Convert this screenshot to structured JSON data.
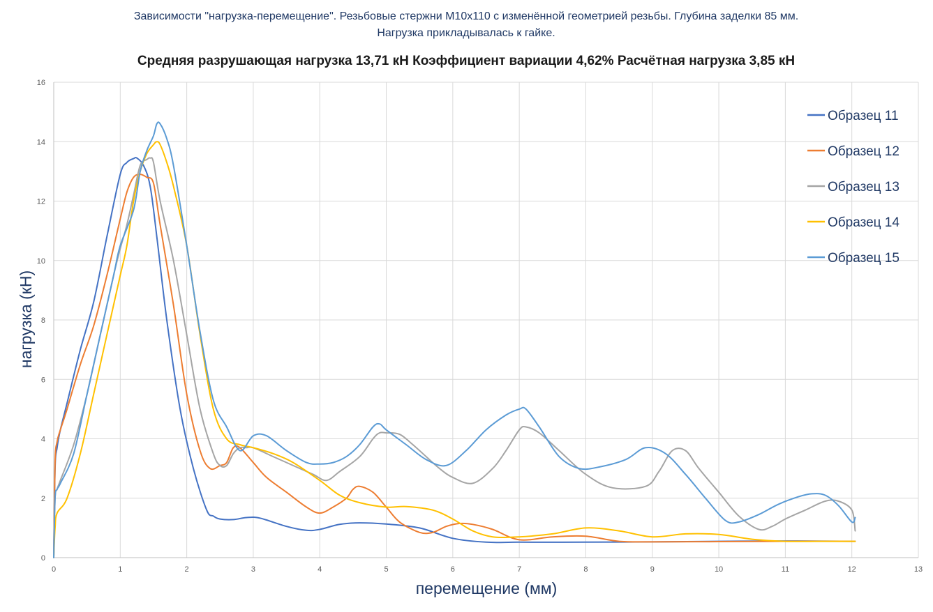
{
  "chart_data": {
    "type": "line",
    "title_line1": "Зависимости \"нагрузка-перемещение\". Резьбовые стержни М10х110 с изменённой геометрией резьбы. Глубина заделки 85 мм.",
    "title_line2": "Нагрузка прикладывалась к гайке.",
    "subtitle": "Средняя разрушающая нагрузка 13,71 кН  Коэффициент вариации 4,62%  Расчётная нагрузка 3,85 кН",
    "xlabel": "перемещение (мм)",
    "ylabel": "нагрузка (кН)",
    "xlim": [
      0,
      13
    ],
    "ylim": [
      0,
      16
    ],
    "xticks": [
      0,
      1,
      2,
      3,
      4,
      5,
      6,
      7,
      8,
      9,
      10,
      11,
      12,
      13
    ],
    "yticks": [
      0,
      2,
      4,
      6,
      8,
      10,
      12,
      14,
      16
    ],
    "grid": true,
    "legend_position": "right",
    "series": [
      {
        "name": "Образец 11",
        "color": "#4472c4",
        "x": [
          0,
          0.02,
          0.05,
          0.1,
          0.2,
          0.4,
          0.6,
          0.8,
          1.0,
          1.1,
          1.2,
          1.25,
          1.35,
          1.45,
          1.55,
          1.7,
          1.9,
          2.1,
          2.3,
          2.4,
          2.5,
          2.7,
          2.9,
          3.1,
          3.5,
          3.8,
          4.0,
          4.3,
          4.6,
          5.0,
          5.5,
          6.0,
          6.5,
          7.0,
          8.0,
          9.0,
          10.0,
          11.0,
          12.05
        ],
        "y": [
          0,
          3.0,
          3.7,
          4.3,
          5.2,
          7.0,
          8.6,
          10.8,
          12.9,
          13.3,
          13.43,
          13.45,
          13.2,
          12.5,
          10.8,
          8.0,
          5.0,
          3.0,
          1.6,
          1.4,
          1.3,
          1.28,
          1.35,
          1.33,
          1.05,
          0.92,
          0.95,
          1.12,
          1.17,
          1.13,
          1.0,
          0.65,
          0.52,
          0.52,
          0.52,
          0.53,
          0.55,
          0.56,
          0.55
        ]
      },
      {
        "name": "Образец 12",
        "color": "#ed7d31",
        "x": [
          0,
          0.02,
          0.05,
          0.1,
          0.2,
          0.4,
          0.6,
          0.8,
          1.0,
          1.1,
          1.2,
          1.3,
          1.4,
          1.5,
          1.6,
          1.8,
          2.0,
          2.2,
          2.35,
          2.5,
          2.6,
          2.7,
          2.8,
          3.0,
          3.2,
          3.5,
          3.8,
          4.0,
          4.2,
          4.4,
          4.5,
          4.6,
          4.8,
          5.0,
          5.2,
          5.5,
          5.7,
          5.9,
          6.1,
          6.3,
          6.6,
          7.0,
          7.5,
          8.0,
          8.5,
          9.0,
          10.0,
          11.0,
          12.05
        ],
        "y": [
          0,
          3.2,
          3.9,
          4.3,
          5.0,
          6.5,
          7.8,
          9.5,
          11.4,
          12.3,
          12.8,
          12.9,
          12.8,
          12.6,
          11.2,
          8.5,
          5.5,
          3.6,
          3.0,
          3.1,
          3.2,
          3.7,
          3.7,
          3.2,
          2.7,
          2.2,
          1.7,
          1.5,
          1.7,
          2.0,
          2.3,
          2.4,
          2.2,
          1.7,
          1.2,
          0.85,
          0.85,
          1.05,
          1.15,
          1.12,
          0.95,
          0.6,
          0.7,
          0.72,
          0.55,
          0.53,
          0.54,
          0.55,
          0.55
        ]
      },
      {
        "name": "Образец 13",
        "color": "#a5a5a5",
        "x": [
          0,
          0.02,
          0.05,
          0.1,
          0.3,
          0.5,
          0.7,
          0.9,
          1.0,
          1.1,
          1.2,
          1.3,
          1.4,
          1.45,
          1.5,
          1.6,
          1.8,
          2.0,
          2.2,
          2.4,
          2.5,
          2.6,
          2.7,
          2.8,
          2.9,
          3.0,
          3.3,
          3.6,
          3.9,
          4.1,
          4.3,
          4.6,
          4.8,
          4.9,
          5.0,
          5.2,
          5.4,
          5.6,
          5.8,
          6.0,
          6.3,
          6.6,
          6.8,
          7.0,
          7.1,
          7.3,
          7.6,
          8.0,
          8.4,
          8.9,
          9.1,
          9.3,
          9.5,
          9.7,
          10.0,
          10.3,
          10.6,
          10.8,
          11.0,
          11.3,
          11.6,
          11.8,
          12.0,
          12.05
        ],
        "y": [
          0,
          2.0,
          2.3,
          2.6,
          3.8,
          5.5,
          7.5,
          9.5,
          10.4,
          11.2,
          12.2,
          13.2,
          13.4,
          13.45,
          13.3,
          12.0,
          10.0,
          7.5,
          5.0,
          3.5,
          3.1,
          3.1,
          3.5,
          3.7,
          3.7,
          3.7,
          3.4,
          3.1,
          2.8,
          2.6,
          2.9,
          3.4,
          4.0,
          4.2,
          4.2,
          4.15,
          3.8,
          3.4,
          3.0,
          2.7,
          2.5,
          3.0,
          3.6,
          4.3,
          4.4,
          4.2,
          3.6,
          2.8,
          2.35,
          2.4,
          2.9,
          3.6,
          3.6,
          3.0,
          2.2,
          1.4,
          0.95,
          1.05,
          1.3,
          1.6,
          1.9,
          1.9,
          1.6,
          0.9
        ]
      },
      {
        "name": "Образец 14",
        "color": "#ffc000",
        "x": [
          0,
          0.02,
          0.05,
          0.2,
          0.4,
          0.6,
          0.8,
          1.0,
          1.1,
          1.2,
          1.3,
          1.4,
          1.5,
          1.55,
          1.6,
          1.7,
          1.8,
          2.0,
          2.2,
          2.4,
          2.6,
          2.8,
          3.0,
          3.3,
          3.6,
          4.0,
          4.3,
          4.6,
          5.0,
          5.3,
          5.7,
          6.0,
          6.3,
          6.6,
          7.0,
          7.5,
          8.0,
          8.5,
          9.0,
          9.5,
          10.0,
          10.5,
          11.0,
          11.5,
          12.05
        ],
        "y": [
          0,
          1.0,
          1.5,
          2.0,
          3.5,
          5.5,
          7.5,
          9.5,
          10.5,
          12.0,
          13.0,
          13.6,
          13.9,
          14.0,
          13.9,
          13.3,
          12.5,
          10.5,
          7.5,
          5.0,
          4.0,
          3.8,
          3.7,
          3.5,
          3.2,
          2.6,
          2.1,
          1.85,
          1.7,
          1.72,
          1.6,
          1.3,
          0.9,
          0.7,
          0.7,
          0.8,
          1.0,
          0.9,
          0.7,
          0.8,
          0.78,
          0.62,
          0.55,
          0.55,
          0.55
        ]
      },
      {
        "name": "Образец 15",
        "color": "#5b9bd5",
        "x": [
          0,
          0.02,
          0.05,
          0.1,
          0.3,
          0.5,
          0.7,
          0.9,
          1.0,
          1.2,
          1.3,
          1.4,
          1.5,
          1.55,
          1.6,
          1.7,
          1.8,
          2.0,
          2.2,
          2.4,
          2.6,
          2.8,
          3.0,
          3.2,
          3.5,
          3.8,
          4.0,
          4.2,
          4.4,
          4.6,
          4.8,
          4.9,
          5.0,
          5.3,
          5.6,
          5.9,
          6.2,
          6.5,
          6.8,
          7.0,
          7.1,
          7.3,
          7.6,
          7.9,
          8.2,
          8.6,
          8.9,
          9.2,
          9.5,
          9.8,
          10.1,
          10.3,
          10.6,
          10.9,
          11.2,
          11.4,
          11.6,
          11.8,
          12.0,
          12.05
        ],
        "y": [
          0,
          2.0,
          2.3,
          2.5,
          3.5,
          5.5,
          7.5,
          9.5,
          10.5,
          11.7,
          13.0,
          13.7,
          14.2,
          14.6,
          14.6,
          14.1,
          13.2,
          10.5,
          7.6,
          5.3,
          4.4,
          3.6,
          4.1,
          4.1,
          3.6,
          3.2,
          3.15,
          3.2,
          3.4,
          3.8,
          4.4,
          4.5,
          4.3,
          3.8,
          3.3,
          3.1,
          3.6,
          4.3,
          4.8,
          5.0,
          5.0,
          4.4,
          3.4,
          3.0,
          3.05,
          3.3,
          3.7,
          3.5,
          2.8,
          2.0,
          1.25,
          1.2,
          1.45,
          1.8,
          2.05,
          2.15,
          2.1,
          1.75,
          1.2,
          1.35
        ]
      }
    ]
  }
}
